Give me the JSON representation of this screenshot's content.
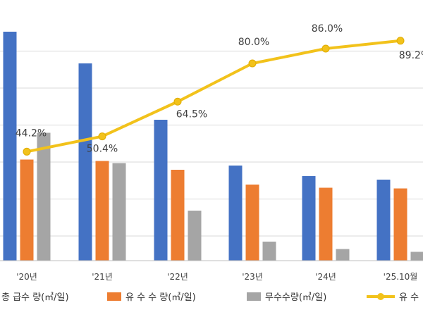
{
  "chart_data": {
    "type": "bar",
    "categories": [
      "'20년",
      "'21년",
      "'22년",
      "'23년",
      "'24년",
      "'25.10월"
    ],
    "series": [
      {
        "name": "총 급수 량(㎥/일)",
        "kind": "bar",
        "color": "#4472C4",
        "values": [
          650,
          560,
          400,
          270,
          240,
          230
        ]
      },
      {
        "name": "유 수 수 량(㎥/일)",
        "kind": "bar",
        "color": "#ED7D31",
        "values": [
          287,
          283,
          258,
          216,
          207,
          205
        ]
      },
      {
        "name": "무수수량(㎥/일)",
        "kind": "bar",
        "color": "#A5A5A5",
        "values": [
          363,
          277,
          142,
          54,
          33,
          25
        ]
      },
      {
        "name": "유 수",
        "kind": "line",
        "color": "#F2C21B",
        "values": [
          44.2,
          50.4,
          64.5,
          80.0,
          86.0,
          89.2
        ],
        "labels": [
          "44.2%",
          "50.4%",
          "64.5%",
          "80.0%",
          "86.0%",
          "89.2%"
        ]
      }
    ],
    "ylim": [
      0,
      700
    ],
    "y2lim": [
      0,
      100
    ],
    "grid": true,
    "legend": "bottom",
    "title": "",
    "xlabel": "",
    "ylabel": ""
  }
}
